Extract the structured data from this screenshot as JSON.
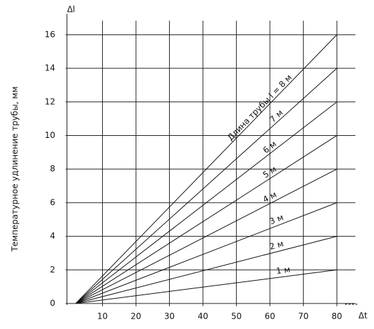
{
  "chart_data": {
    "type": "line",
    "y_label": "Температурное удлинение трубы, мм",
    "y_axis_symbol": "Δl",
    "x_axis_symbol": "Δt",
    "x": [
      2,
      80
    ],
    "series": [
      {
        "name": "1 м",
        "color": "#111111",
        "values": [
          0,
          2
        ]
      },
      {
        "name": "2 м",
        "color": "#111111",
        "values": [
          0,
          4
        ]
      },
      {
        "name": "3 м",
        "color": "#111111",
        "values": [
          0,
          6
        ]
      },
      {
        "name": "4 м",
        "color": "#111111",
        "values": [
          0,
          8
        ]
      },
      {
        "name": "5 м",
        "color": "#111111",
        "values": [
          0,
          10
        ]
      },
      {
        "name": "6 м",
        "color": "#111111",
        "values": [
          0,
          12
        ]
      },
      {
        "name": "7 м",
        "color": "#111111",
        "values": [
          0,
          14
        ]
      },
      {
        "name": "Длина трубы l = 8 м",
        "color": "#111111",
        "values": [
          0,
          16
        ]
      }
    ],
    "xlim": [
      0,
      88
    ],
    "xticks": [
      10,
      20,
      30,
      40,
      50,
      60,
      70,
      80
    ],
    "ylim": [
      0,
      17
    ],
    "yticks": [
      0,
      2,
      4,
      6,
      8,
      10,
      12,
      14,
      16
    ],
    "grid": true
  }
}
